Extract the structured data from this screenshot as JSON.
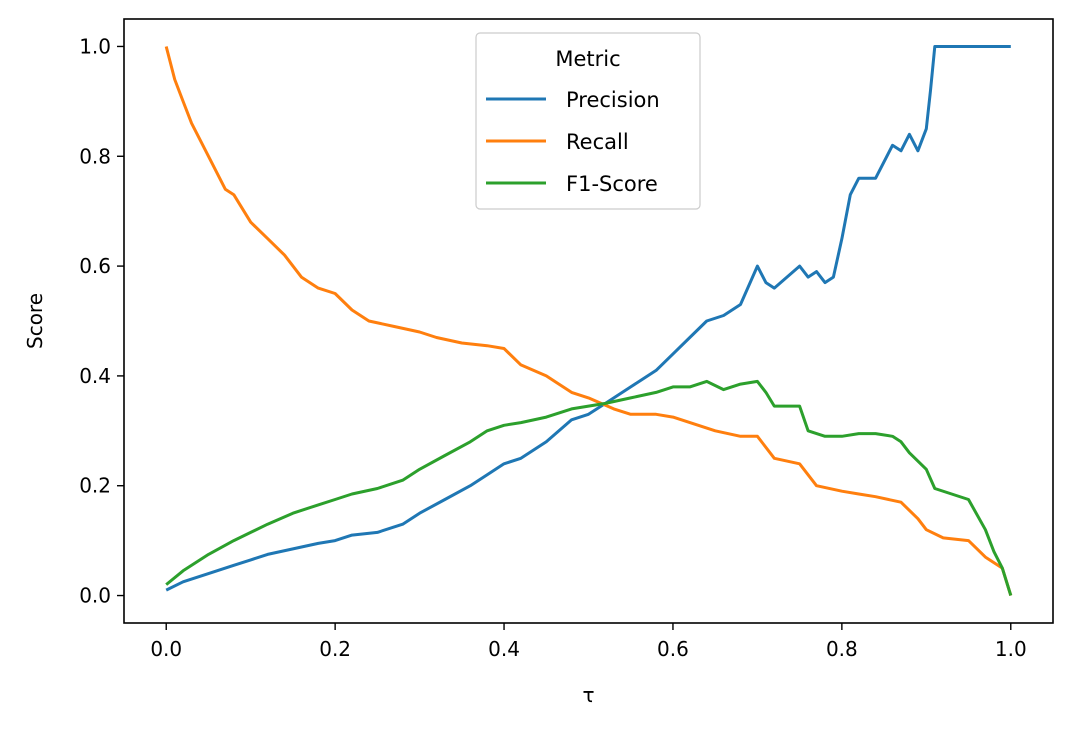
{
  "chart_data": {
    "type": "line",
    "xlabel": "τ",
    "ylabel": "Score",
    "xlim": [
      -0.05,
      1.05
    ],
    "ylim": [
      -0.05,
      1.05
    ],
    "xticks": [
      0.0,
      0.2,
      0.4,
      0.6,
      0.8,
      1.0
    ],
    "yticks": [
      0.0,
      0.2,
      0.4,
      0.6,
      0.8,
      1.0
    ],
    "tick_labels": {
      "x": [
        "0.0",
        "0.2",
        "0.4",
        "0.6",
        "0.8",
        "1.0"
      ],
      "y": [
        "0.0",
        "0.2",
        "0.4",
        "0.6",
        "0.8",
        "1.0"
      ]
    },
    "grid": false,
    "legend": {
      "title": "Metric",
      "position": "top-center"
    },
    "series": [
      {
        "name": "Precision",
        "color": "#1f77b4",
        "x": [
          0.0,
          0.02,
          0.05,
          0.08,
          0.1,
          0.12,
          0.15,
          0.18,
          0.2,
          0.22,
          0.25,
          0.28,
          0.3,
          0.33,
          0.36,
          0.38,
          0.4,
          0.42,
          0.45,
          0.48,
          0.5,
          0.52,
          0.55,
          0.58,
          0.6,
          0.62,
          0.64,
          0.66,
          0.68,
          0.7,
          0.71,
          0.72,
          0.75,
          0.76,
          0.77,
          0.78,
          0.79,
          0.8,
          0.81,
          0.82,
          0.84,
          0.86,
          0.87,
          0.88,
          0.89,
          0.9,
          0.905,
          0.91,
          0.915,
          0.95,
          1.0
        ],
        "y": [
          0.01,
          0.025,
          0.04,
          0.055,
          0.065,
          0.075,
          0.085,
          0.095,
          0.1,
          0.11,
          0.115,
          0.13,
          0.15,
          0.175,
          0.2,
          0.22,
          0.24,
          0.25,
          0.28,
          0.32,
          0.33,
          0.35,
          0.38,
          0.41,
          0.44,
          0.47,
          0.5,
          0.51,
          0.53,
          0.6,
          0.57,
          0.56,
          0.6,
          0.58,
          0.59,
          0.57,
          0.58,
          0.65,
          0.73,
          0.76,
          0.76,
          0.82,
          0.81,
          0.84,
          0.81,
          0.85,
          0.92,
          1.0,
          1.0,
          1.0,
          1.0
        ]
      },
      {
        "name": "Recall",
        "color": "#ff7f0e",
        "x": [
          0.0,
          0.01,
          0.02,
          0.03,
          0.05,
          0.07,
          0.08,
          0.1,
          0.12,
          0.14,
          0.16,
          0.18,
          0.2,
          0.22,
          0.24,
          0.27,
          0.3,
          0.32,
          0.35,
          0.38,
          0.4,
          0.42,
          0.45,
          0.48,
          0.5,
          0.53,
          0.55,
          0.58,
          0.6,
          0.65,
          0.68,
          0.7,
          0.72,
          0.75,
          0.77,
          0.8,
          0.82,
          0.84,
          0.87,
          0.89,
          0.9,
          0.92,
          0.95,
          0.97,
          0.99,
          1.0
        ],
        "y": [
          1.0,
          0.94,
          0.9,
          0.86,
          0.8,
          0.74,
          0.73,
          0.68,
          0.65,
          0.62,
          0.58,
          0.56,
          0.55,
          0.52,
          0.5,
          0.49,
          0.48,
          0.47,
          0.46,
          0.455,
          0.45,
          0.42,
          0.4,
          0.37,
          0.36,
          0.34,
          0.33,
          0.33,
          0.325,
          0.3,
          0.29,
          0.29,
          0.25,
          0.24,
          0.2,
          0.19,
          0.185,
          0.18,
          0.17,
          0.14,
          0.12,
          0.105,
          0.1,
          0.07,
          0.05,
          0.0
        ]
      },
      {
        "name": "F1-Score",
        "color": "#2ca02c",
        "x": [
          0.0,
          0.02,
          0.05,
          0.08,
          0.1,
          0.12,
          0.15,
          0.18,
          0.2,
          0.22,
          0.25,
          0.28,
          0.3,
          0.33,
          0.36,
          0.38,
          0.4,
          0.42,
          0.45,
          0.48,
          0.5,
          0.52,
          0.55,
          0.58,
          0.6,
          0.62,
          0.64,
          0.66,
          0.68,
          0.7,
          0.71,
          0.72,
          0.75,
          0.76,
          0.78,
          0.8,
          0.82,
          0.84,
          0.86,
          0.87,
          0.88,
          0.9,
          0.91,
          0.95,
          0.97,
          0.98,
          0.99,
          1.0
        ],
        "y": [
          0.02,
          0.045,
          0.075,
          0.1,
          0.115,
          0.13,
          0.15,
          0.165,
          0.175,
          0.185,
          0.195,
          0.21,
          0.23,
          0.255,
          0.28,
          0.3,
          0.31,
          0.315,
          0.325,
          0.34,
          0.345,
          0.35,
          0.36,
          0.37,
          0.38,
          0.38,
          0.39,
          0.375,
          0.385,
          0.39,
          0.37,
          0.345,
          0.345,
          0.3,
          0.29,
          0.29,
          0.295,
          0.295,
          0.29,
          0.28,
          0.26,
          0.23,
          0.195,
          0.175,
          0.12,
          0.08,
          0.05,
          0.0
        ]
      }
    ]
  }
}
